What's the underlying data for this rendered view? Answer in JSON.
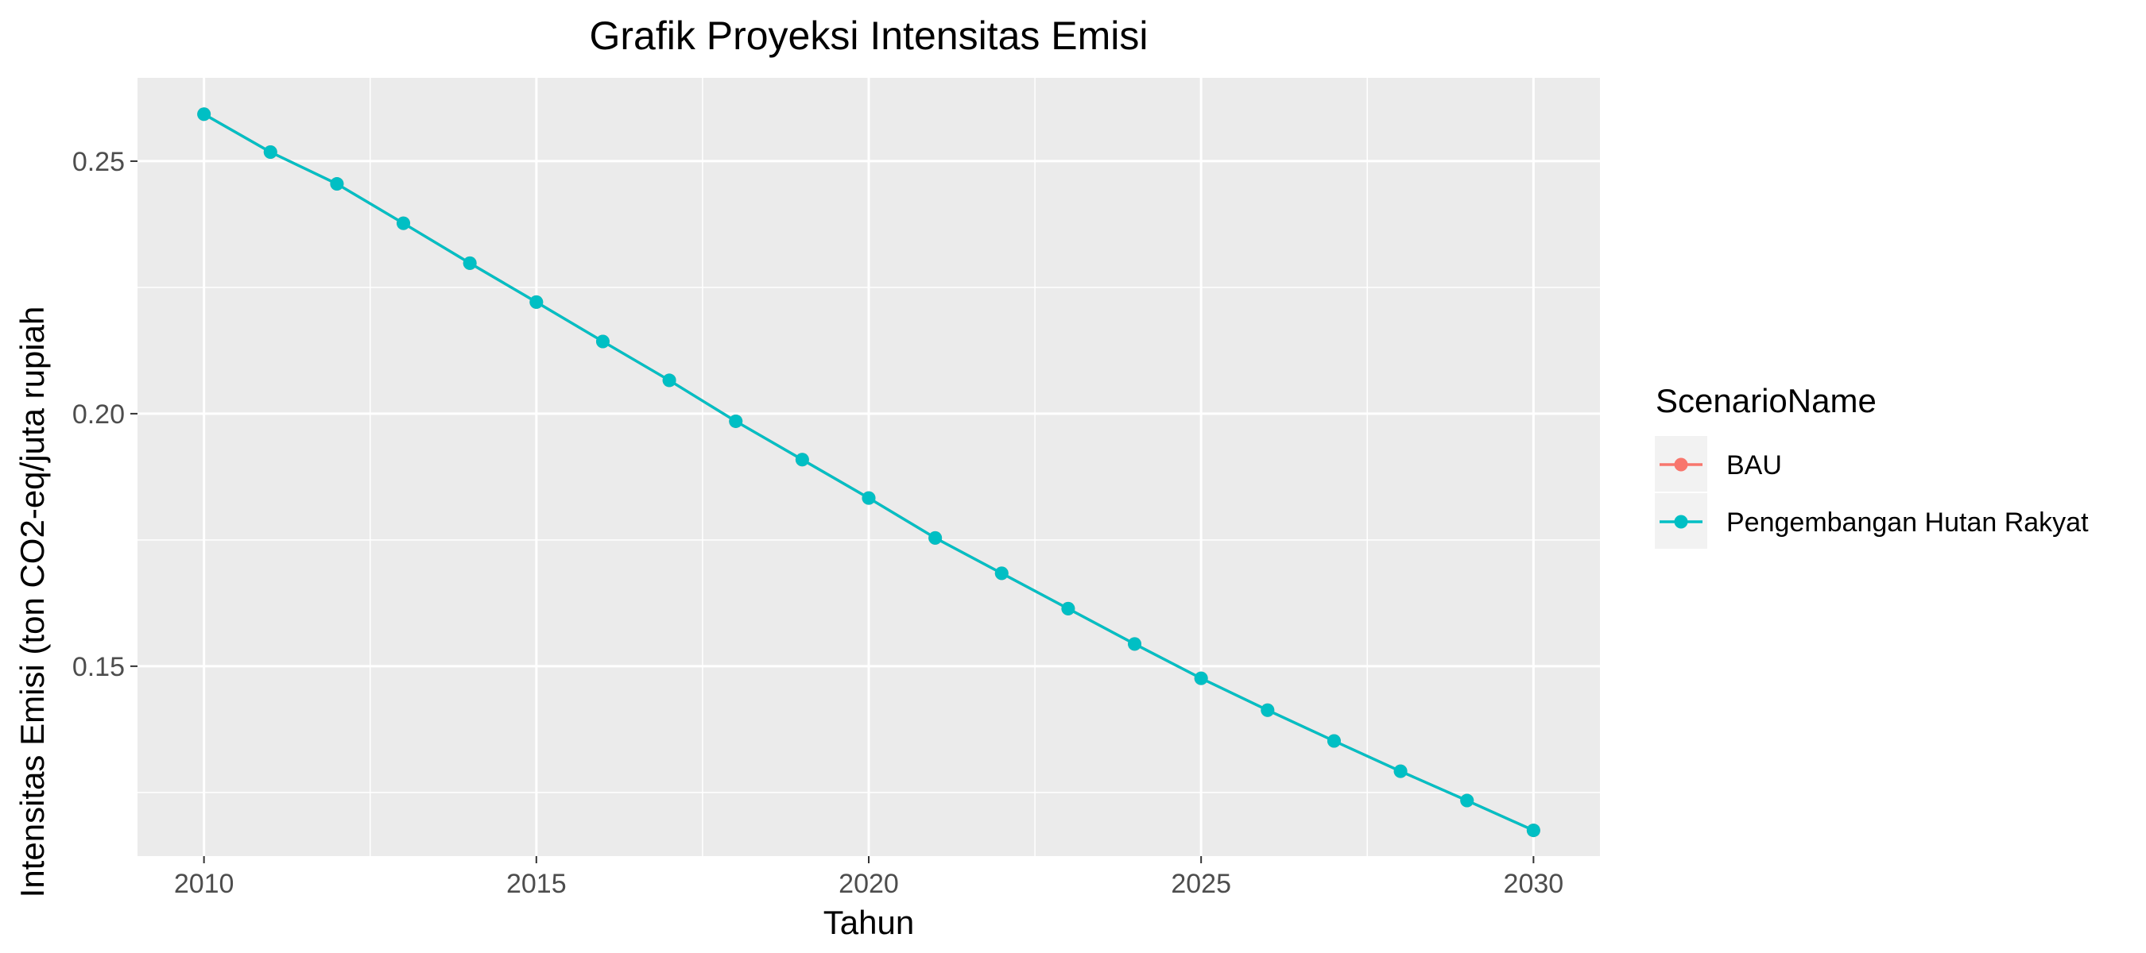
{
  "chart_data": {
    "type": "line",
    "title": "Grafik Proyeksi Intensitas Emisi",
    "xlabel": "Tahun",
    "ylabel": "Intensitas Emisi (ton CO2-eq/juta rupiah",
    "x": [
      2010,
      2011,
      2012,
      2013,
      2014,
      2015,
      2016,
      2017,
      2018,
      2019,
      2020,
      2021,
      2022,
      2023,
      2024,
      2025,
      2026,
      2027,
      2028,
      2029,
      2030
    ],
    "xlim": [
      2009.0,
      2031.0
    ],
    "ylim": [
      0.1124,
      0.2665
    ],
    "x_ticks": [
      2010,
      2015,
      2020,
      2025,
      2030
    ],
    "x_tick_labels": [
      "2010",
      "2015",
      "2020",
      "2025",
      "2030"
    ],
    "y_ticks": [
      0.15,
      0.2,
      0.25
    ],
    "y_tick_labels": [
      "0.15",
      "0.20",
      "0.25"
    ],
    "grid": true,
    "legend": {
      "title": "ScenarioName",
      "position": "right"
    },
    "series": [
      {
        "name": "BAU",
        "color": "#F8766D",
        "values": [
          0.2593,
          0.2518,
          0.2455,
          0.2377,
          0.2298,
          0.2221,
          0.2143,
          0.2066,
          0.1985,
          0.1909,
          0.1833,
          0.1754,
          0.1684,
          0.1614,
          0.1544,
          0.1476,
          0.1413,
          0.1352,
          0.1292,
          0.1234,
          0.1175
        ]
      },
      {
        "name": "Pengembangan Hutan Rakyat",
        "color": "#00BFC4",
        "values": [
          0.2593,
          0.2518,
          0.2455,
          0.2377,
          0.2298,
          0.2221,
          0.2143,
          0.2066,
          0.1985,
          0.1909,
          0.1833,
          0.1754,
          0.1684,
          0.1614,
          0.1544,
          0.1476,
          0.1413,
          0.1352,
          0.1292,
          0.1234,
          0.1175
        ]
      }
    ]
  },
  "colors": {
    "panel_background": "#EBEBEB",
    "grid_major": "#FFFFFF",
    "tick_text": "#4D4D4D",
    "legend_key_background": "#F2F2F2"
  }
}
